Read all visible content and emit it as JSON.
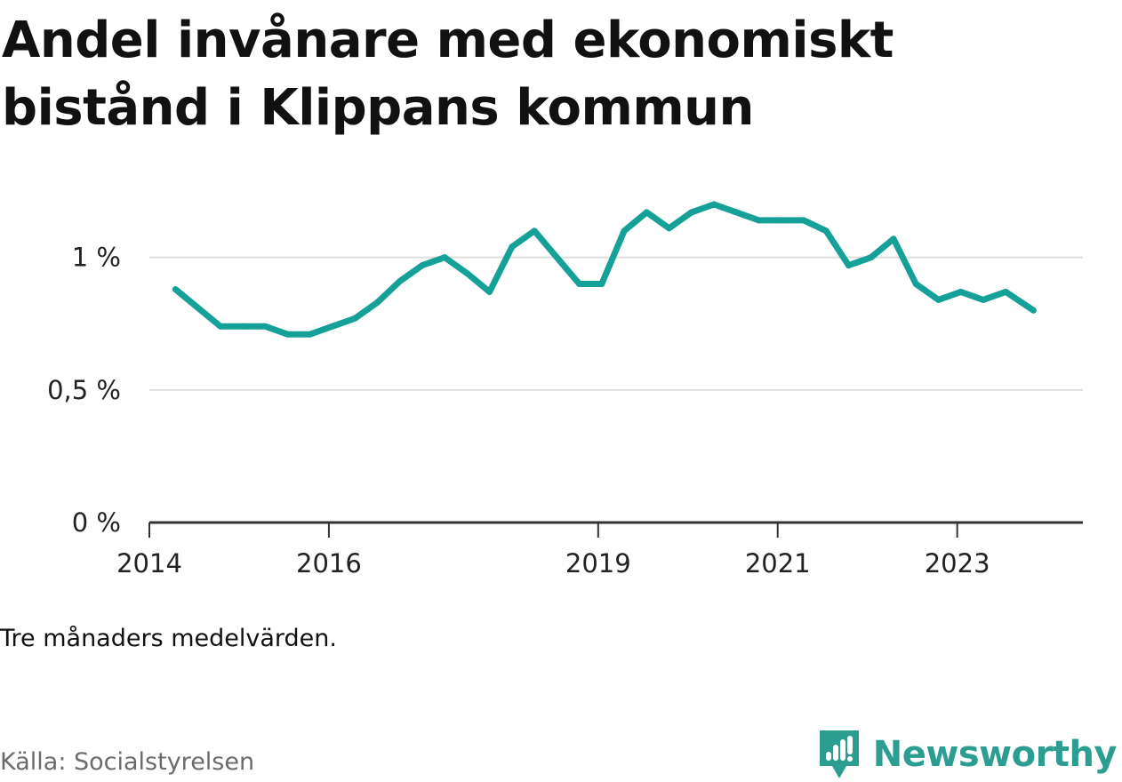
{
  "title": "Andel invånare med ekonomiskt bistånd i Klippans kommun",
  "note": "Tre månaders medelvärden.",
  "source": "Källa: Socialstyrelsen",
  "brand": {
    "name": "Newsworthy",
    "icon": "newsworthy-logo-icon",
    "color": "#2c9d91"
  },
  "colors": {
    "line": "#15a098",
    "grid": "#dddddd",
    "axis": "#333333"
  },
  "chart_data": {
    "type": "line",
    "title": "Andel invånare med ekonomiskt bistånd i Klippans kommun",
    "xlabel": "",
    "ylabel": "",
    "xlim": [
      2014,
      2024.4
    ],
    "ylim": [
      0,
      1.2
    ],
    "y_ticks": [
      {
        "value": 0,
        "label": "0 %"
      },
      {
        "value": 0.5,
        "label": "0,5 %"
      },
      {
        "value": 1,
        "label": "1 %"
      }
    ],
    "x_ticks": [
      {
        "value": 2014,
        "label": "2014"
      },
      {
        "value": 2016,
        "label": "2016"
      },
      {
        "value": 2019,
        "label": "2019"
      },
      {
        "value": 2021,
        "label": "2021"
      },
      {
        "value": 2023,
        "label": "2023"
      }
    ],
    "grid": true,
    "series": [
      {
        "x": [
          2014.29,
          2014.79,
          2015.04,
          2015.29,
          2015.54,
          2015.79,
          2016.04,
          2016.29,
          2016.54,
          2016.79,
          2017.04,
          2017.29,
          2017.54,
          2017.79,
          2018.04,
          2018.29,
          2018.54,
          2018.79,
          2019.04,
          2019.29,
          2019.54,
          2019.79,
          2020.04,
          2020.29,
          2020.54,
          2020.79,
          2021.04,
          2021.29,
          2021.54,
          2021.79,
          2022.04,
          2022.29,
          2022.54,
          2022.79,
          2023.04,
          2023.29,
          2023.54,
          2023.85
        ],
        "values": [
          0.88,
          0.74,
          0.74,
          0.74,
          0.71,
          0.71,
          0.74,
          0.77,
          0.83,
          0.91,
          0.97,
          1.0,
          0.94,
          0.87,
          1.04,
          1.1,
          1.0,
          0.9,
          0.9,
          1.1,
          1.17,
          1.11,
          1.17,
          1.2,
          1.17,
          1.14,
          1.14,
          1.14,
          1.1,
          0.97,
          1.0,
          1.07,
          0.9,
          0.84,
          0.87,
          0.84,
          0.87,
          0.8
        ]
      }
    ]
  }
}
